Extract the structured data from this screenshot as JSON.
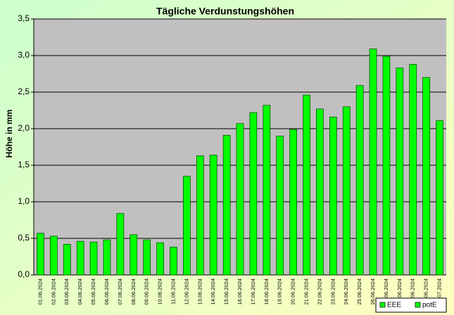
{
  "chart_data": {
    "type": "bar",
    "title": "Tägliche Verdunstungshöhen",
    "y_label": "Höhe in mm",
    "categories": [
      "01.06.2024",
      "02.06.2024",
      "03.06.2024",
      "04.06.2024",
      "05.06.2024",
      "06.06.2024",
      "07.06.2024",
      "08.06.2024",
      "09.06.2024",
      "10.06.2024",
      "11.06.2024",
      "12.06.2024",
      "13.06.2024",
      "14.06.2024",
      "15.06.2024",
      "16.06.2024",
      "17.06.2024",
      "18.06.2024",
      "19.06.2024",
      "20.06.2024",
      "21.06.2024",
      "22.06.2024",
      "23.06.2024",
      "24.06.2024",
      "25.06.2024",
      "26.06.2024",
      "27.06.2024",
      "28.06.2024",
      "29.06.2024",
      "30.06.2024",
      "01.07.2024"
    ],
    "series": [
      {
        "name": "EEE",
        "color": "#00ff00",
        "values": [
          null,
          null,
          null,
          null,
          null,
          null,
          null,
          null,
          null,
          null,
          null,
          null,
          null,
          null,
          null,
          null,
          null,
          null,
          null,
          null,
          null,
          null,
          null,
          null,
          null,
          null,
          null,
          null,
          null,
          null,
          null
        ]
      },
      {
        "name": "potE",
        "color": "#00ff00",
        "values": [
          0.57,
          0.53,
          0.42,
          0.46,
          0.45,
          0.48,
          0.84,
          0.55,
          0.48,
          0.44,
          0.38,
          1.35,
          1.63,
          1.64,
          1.91,
          2.07,
          2.22,
          2.32,
          1.9,
          1.99,
          2.46,
          2.27,
          2.16,
          2.3,
          2.59,
          3.09,
          2.99,
          2.83,
          2.88,
          2.7,
          2.11
        ]
      }
    ],
    "ylim": [
      0,
      3.5
    ],
    "yticks": [
      {
        "value": 0,
        "label": "0,0"
      },
      {
        "value": 0.5,
        "label": "0,5"
      },
      {
        "value": 1,
        "label": "1,0"
      },
      {
        "value": 1.5,
        "label": "1,5"
      },
      {
        "value": 2,
        "label": "2,0"
      },
      {
        "value": 2.5,
        "label": "2,5"
      },
      {
        "value": 3,
        "label": "3,0"
      },
      {
        "value": 3.5,
        "label": "3,5"
      }
    ],
    "grid": true,
    "legend": "bottom-right"
  }
}
